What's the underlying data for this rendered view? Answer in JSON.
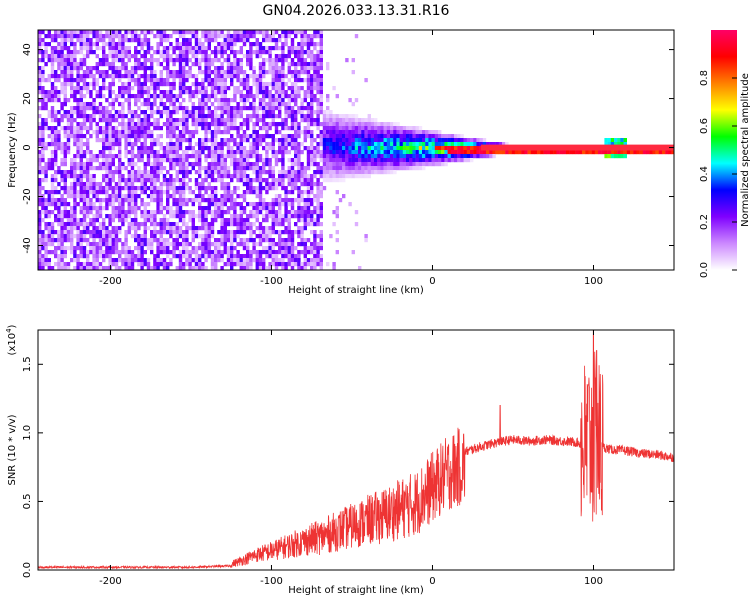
{
  "title": "GN04.2026.033.13.31.R16",
  "chart_data": [
    {
      "type": "heatmap",
      "xlabel": "Height of straight line (km)",
      "ylabel": "Frequency (Hz)",
      "xlim": [
        -245,
        150
      ],
      "ylim": [
        -50,
        48
      ],
      "xticks": [
        -200,
        -100,
        0,
        100
      ],
      "yticks": [
        -40,
        -20,
        0,
        20,
        40
      ],
      "colorbar": {
        "label": "Normalized spectral amplitude",
        "range": [
          0,
          1
        ],
        "ticks": [
          "0.0",
          "0.2",
          "0.4",
          "0.6",
          "0.8"
        ],
        "tick_values": [
          0.0,
          0.2,
          0.4,
          0.6,
          0.8
        ],
        "colors": [
          "#ffffff",
          "#cc88ff",
          "#7f00ff",
          "#0000ff",
          "#00ffff",
          "#00ff00",
          "#ffff00",
          "#ff8000",
          "#ff0000",
          "#ff0066"
        ]
      },
      "regions": [
        {
          "x_range": [
            -245,
            -70
          ],
          "description_level": 0.2
        },
        {
          "x_range": [
            -70,
            150
          ],
          "center_frequency_hz": 0
        }
      ],
      "grid": false
    },
    {
      "type": "line",
      "xlabel": "Height of straight line (km)",
      "ylabel": "SNR (10 * v/v)",
      "y_multiplier_label": "(x10",
      "y_multiplier_exp": "4",
      "y_multiplier_close": ")",
      "xlim": [
        -245,
        150
      ],
      "ylim": [
        0,
        1.75
      ],
      "xticks": [
        -200,
        -100,
        0,
        100
      ],
      "yticks": [
        "0.0",
        "0.5",
        "1.0",
        "1.5"
      ],
      "ytick_values": [
        0.0,
        0.5,
        1.0,
        1.5
      ],
      "color": "#ee3333",
      "x": [
        -245,
        -200,
        -150,
        -125,
        -120,
        -110,
        -100,
        -90,
        -80,
        -70,
        -60,
        -50,
        -40,
        -30,
        -20,
        -10,
        0,
        10,
        20,
        30,
        40,
        50,
        60,
        70,
        80,
        90,
        95,
        100,
        105,
        110,
        120,
        130,
        140,
        150
      ],
      "y": [
        0.02,
        0.02,
        0.02,
        0.03,
        0.05,
        0.1,
        0.12,
        0.15,
        0.18,
        0.2,
        0.24,
        0.28,
        0.32,
        0.35,
        0.4,
        0.45,
        0.62,
        0.78,
        0.86,
        0.9,
        0.93,
        0.95,
        0.94,
        0.95,
        0.94,
        0.93,
        0.9,
        0.95,
        0.9,
        0.88,
        0.87,
        0.85,
        0.84,
        0.82
      ],
      "peaks": [
        {
          "x": 42,
          "y": 1.2
        },
        {
          "x": 97,
          "y": 1.35
        },
        {
          "x": 100,
          "y": 1.75
        },
        {
          "x": 102,
          "y": 1.6
        }
      ],
      "grid": false
    }
  ]
}
